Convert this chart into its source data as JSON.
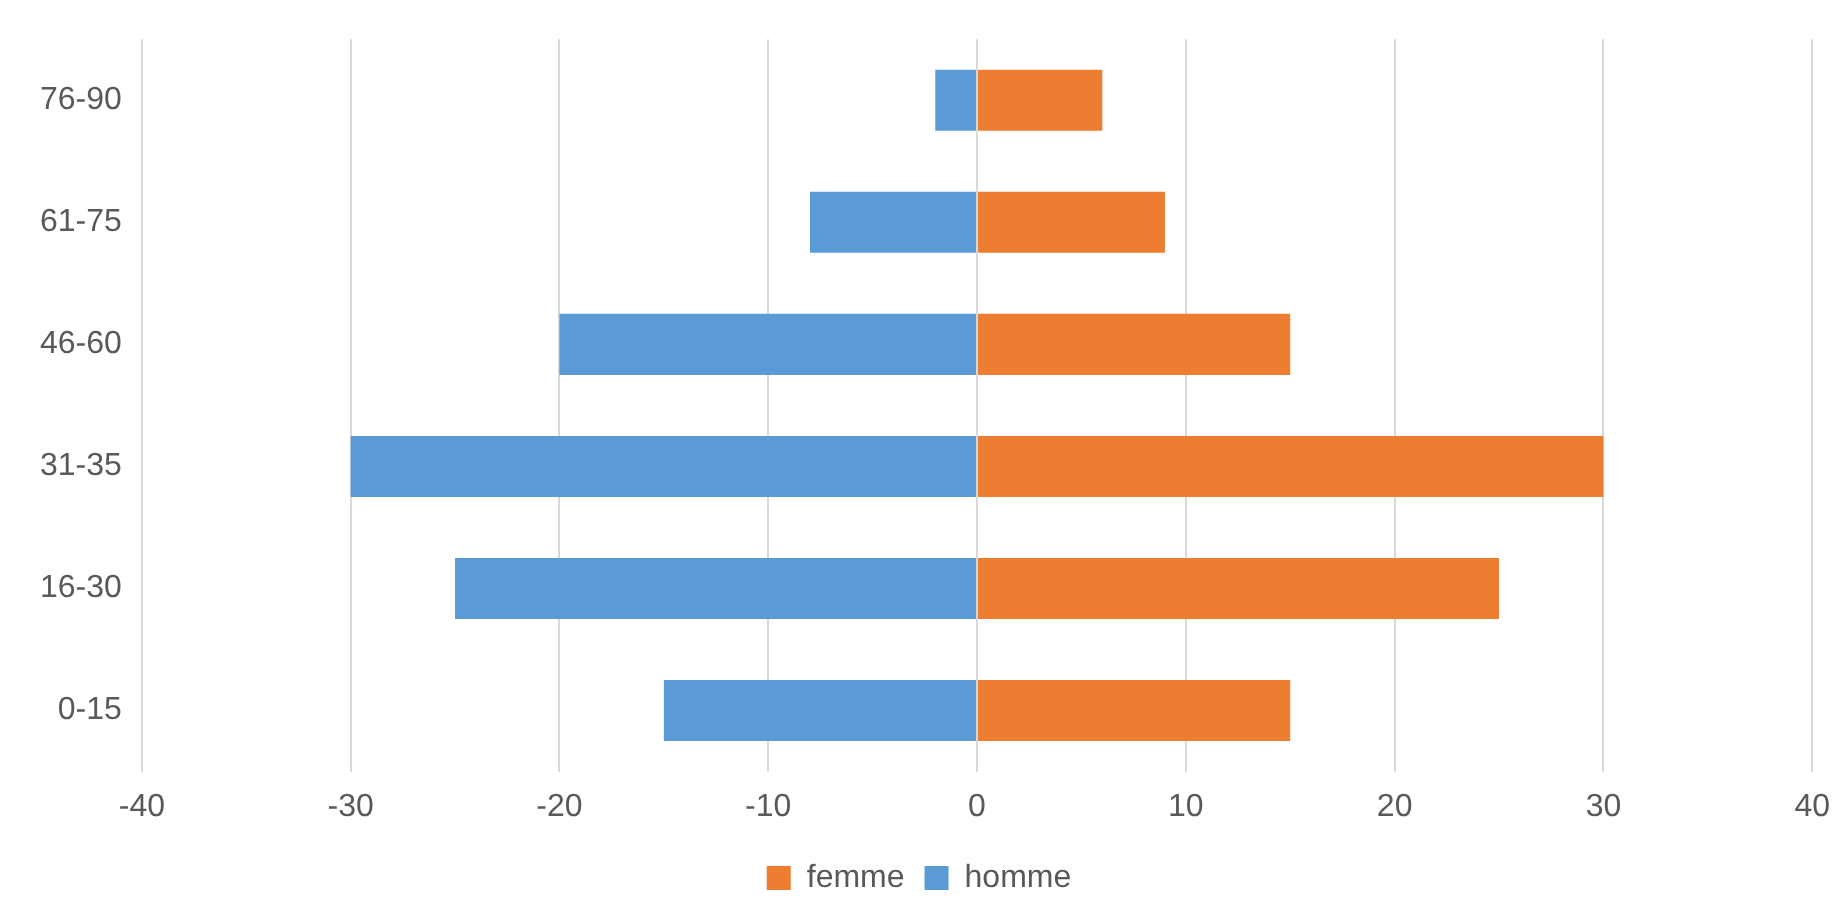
{
  "chart_data": {
    "type": "bar",
    "orientation": "horizontal",
    "stacked": true,
    "categories": [
      "76-90",
      "61-75",
      "46-60",
      "31-35",
      "16-30",
      "0-15"
    ],
    "series": [
      {
        "name": "femme",
        "color": "#ed7d31",
        "values": [
          6,
          9,
          15,
          30,
          25,
          15
        ]
      },
      {
        "name": "homme",
        "color": "#5b9bd5",
        "values": [
          -2,
          -8,
          -20,
          -30,
          -25,
          -15
        ]
      }
    ],
    "xlim": [
      -40,
      40
    ],
    "xticks": [
      -40,
      -30,
      -20,
      -10,
      0,
      10,
      20,
      30,
      40
    ],
    "grid": "x",
    "legend": "bottom"
  }
}
